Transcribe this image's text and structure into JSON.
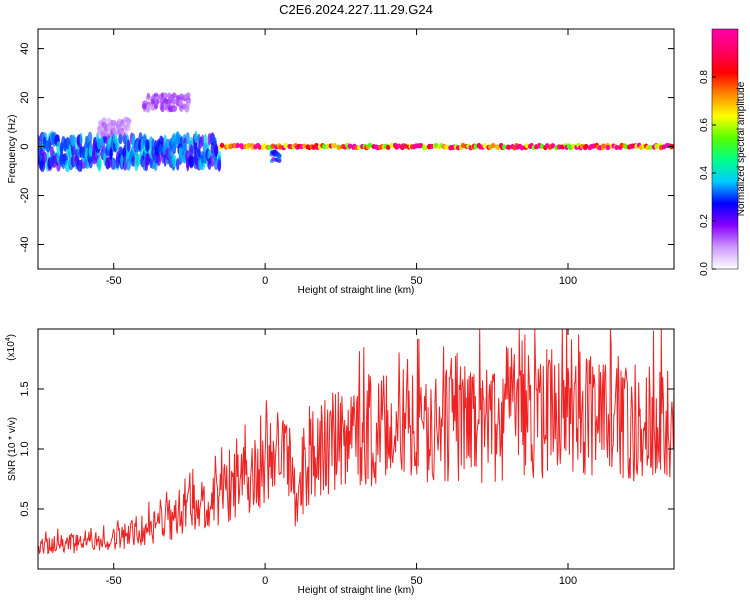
{
  "title": "C2E6.2024.227.11.29.G24",
  "colors": {
    "snr_line": "#ee2222",
    "center_line": "#e8003a",
    "background": "#ffffff",
    "colormap": [
      "#ffffff",
      "#cc99ff",
      "#8800ff",
      "#0000ff",
      "#00ccff",
      "#00ff88",
      "#55ff00",
      "#ffff00",
      "#ff8800",
      "#ff0000",
      "#ff0066",
      "#ff00aa"
    ]
  },
  "chart_data": [
    {
      "id": "spectrogram",
      "type": "heatmap",
      "xlabel": "Height of straight line (km)",
      "ylabel": "Frequency (Hz)",
      "xlim": [
        -75,
        135
      ],
      "ylim": [
        -50,
        48
      ],
      "x_ticks": [
        -50,
        0,
        50,
        100
      ],
      "x_tick_labels": [
        "-50",
        "0",
        "50",
        "100"
      ],
      "y_ticks": [
        -40,
        -20,
        0,
        20,
        40
      ],
      "y_tick_labels": [
        "-40",
        "-20",
        "0",
        "20",
        "40"
      ],
      "grid": false,
      "colorbar": {
        "label": "Normalized spectral amplitude",
        "range": [
          0,
          1
        ],
        "ticks": [
          0.0,
          0.2,
          0.4,
          0.6,
          0.8
        ],
        "tick_labels": [
          "0.0",
          "0.2",
          "0.4",
          "0.6",
          "0.8"
        ]
      },
      "features": [
        {
          "x_range": [
            -75,
            -15
          ],
          "frequency_center": -2,
          "frequency_spread": 6,
          "amplitude": 0.35
        },
        {
          "x_range": [
            -15,
            135
          ],
          "frequency_center": 0,
          "frequency_spread": 1.5,
          "amplitude": 0.95
        },
        {
          "x_range": [
            2,
            5
          ],
          "frequency_center": -4,
          "frequency_spread": 2,
          "amplitude": 0.3
        },
        {
          "x_range": [
            -40,
            -25
          ],
          "frequency_center": 18,
          "frequency_spread": 3,
          "amplitude": 0.15
        },
        {
          "x_range": [
            -55,
            -45
          ],
          "frequency_center": 8,
          "frequency_spread": 3,
          "amplitude": 0.12
        }
      ]
    },
    {
      "id": "snr",
      "type": "line",
      "xlabel": "Height of straight line (km)",
      "ylabel": "SNR (10 * v/v)",
      "scale_label": "(x10^4)",
      "xlim": [
        -75,
        135
      ],
      "ylim": [
        0,
        2.0
      ],
      "x_ticks": [
        -50,
        0,
        50,
        100
      ],
      "x_tick_labels": [
        "-50",
        "0",
        "50",
        "100"
      ],
      "y_ticks": [
        0.5,
        1.0,
        1.5
      ],
      "y_tick_labels": [
        "0.5",
        "1.0",
        "1.5"
      ],
      "grid": false,
      "series": [
        {
          "x": [
            -75,
            -70,
            -65,
            -60,
            -55,
            -50,
            -45,
            -40,
            -35,
            -30,
            -25,
            -20,
            -15,
            -10,
            -5,
            0,
            5,
            8,
            10,
            15,
            20,
            25,
            30,
            40,
            50,
            60,
            70,
            80,
            90,
            100,
            110,
            120,
            130,
            135
          ],
          "y": [
            0.2,
            0.22,
            0.22,
            0.25,
            0.25,
            0.28,
            0.3,
            0.35,
            0.4,
            0.45,
            0.55,
            0.6,
            0.65,
            0.75,
            0.85,
            0.9,
            1.0,
            1.05,
            0.6,
            1.0,
            1.1,
            1.15,
            1.2,
            1.25,
            1.25,
            1.3,
            1.3,
            1.3,
            1.35,
            1.35,
            1.35,
            1.3,
            1.35,
            1.4
          ]
        }
      ]
    }
  ]
}
